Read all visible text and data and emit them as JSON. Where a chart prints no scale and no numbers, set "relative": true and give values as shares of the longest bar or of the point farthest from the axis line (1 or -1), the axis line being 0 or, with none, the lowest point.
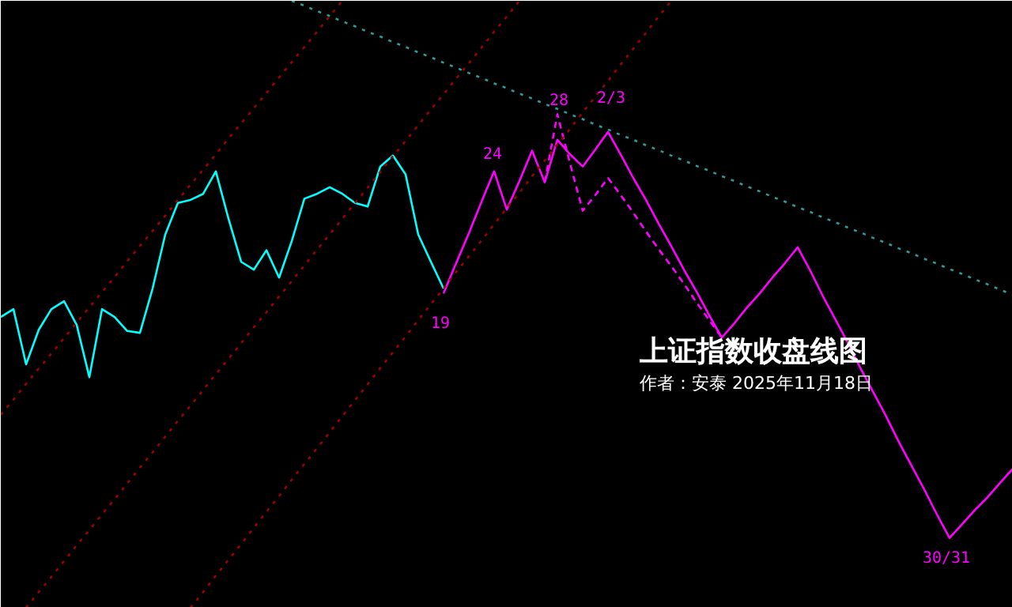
{
  "chart_data": {
    "type": "line",
    "title": "上证指数收盘线图",
    "subtitle": "作者：安泰 2025年11月18日",
    "relative": true,
    "categories": [
      null,
      null,
      null,
      null,
      null,
      null,
      null,
      null,
      null,
      null,
      null,
      null,
      null,
      null,
      null,
      null,
      null,
      null,
      null,
      null,
      null,
      null,
      null,
      null,
      null,
      null,
      null,
      null,
      null,
      null,
      null,
      null,
      null,
      null,
      null,
      null,
      null,
      null,
      null,
      null,
      null,
      null,
      null,
      null,
      null,
      null,
      null,
      null,
      null,
      null,
      null,
      null,
      null,
      null,
      null,
      null,
      null,
      null,
      null,
      null,
      null,
      null,
      null,
      null,
      null,
      null,
      null,
      null,
      null,
      null,
      null,
      null,
      null,
      null,
      null,
      null,
      null,
      null,
      null,
      null,
      null
    ],
    "series": [
      {
        "color": "#00ffff",
        "line_style": "solid",
        "values": [
          0.479,
          0.492,
          0.401,
          0.458,
          0.492,
          0.505,
          0.466,
          0.38,
          0.492,
          0.479,
          0.456,
          0.453,
          0.526,
          0.615,
          0.667,
          0.672,
          0.682,
          0.719,
          0.641,
          0.57,
          0.557,
          0.589,
          0.544,
          0.604,
          0.674,
          0.682,
          0.693,
          0.682,
          0.667,
          0.661,
          0.727,
          0.745,
          0.714,
          0.615,
          0.57,
          0.526,
          null,
          null,
          null,
          null,
          null,
          null,
          null,
          null,
          null,
          null,
          null,
          null,
          null,
          null,
          null,
          null,
          null,
          null,
          null,
          null,
          null,
          null,
          null,
          null,
          null,
          null,
          null,
          null,
          null,
          null,
          null,
          null,
          null,
          null,
          null,
          null,
          null,
          null,
          null,
          null,
          null,
          null,
          null,
          null,
          null
        ]
      },
      {
        "color": "#ff00ff",
        "line_style": "solid",
        "values": [
          null,
          null,
          null,
          null,
          null,
          null,
          null,
          null,
          null,
          null,
          null,
          null,
          null,
          null,
          null,
          null,
          null,
          null,
          null,
          null,
          null,
          null,
          null,
          null,
          null,
          null,
          null,
          null,
          null,
          null,
          null,
          null,
          null,
          null,
          null,
          0.518,
          0.568,
          0.617,
          0.669,
          0.719,
          0.656,
          0.703,
          0.753,
          0.701,
          0.771,
          0.747,
          0.727,
          0.755,
          0.784,
          0.747,
          0.708,
          0.672,
          0.633,
          0.596,
          0.557,
          0.521,
          0.482,
          0.445,
          0.469,
          0.495,
          0.518,
          0.544,
          0.568,
          0.594,
          0.555,
          0.513,
          0.474,
          0.435,
          0.393,
          0.354,
          0.315,
          0.273,
          0.234,
          0.195,
          0.154,
          0.115,
          0.138,
          0.161,
          0.182,
          0.206,
          0.229
        ]
      },
      {
        "color": "#ff00ff",
        "line_style": "dashed",
        "values": [
          null,
          null,
          null,
          null,
          null,
          null,
          null,
          null,
          null,
          null,
          null,
          null,
          null,
          null,
          null,
          null,
          null,
          null,
          null,
          null,
          null,
          null,
          null,
          null,
          null,
          null,
          null,
          null,
          null,
          null,
          null,
          null,
          null,
          null,
          null,
          null,
          null,
          null,
          null,
          null,
          null,
          null,
          null,
          0.701,
          0.813,
          0.732,
          0.654,
          0.68,
          0.708,
          0.68,
          0.651,
          0.62,
          0.591,
          0.563,
          0.534,
          0.503,
          0.474,
          0.445,
          null,
          null,
          null,
          null,
          null,
          null,
          null,
          null,
          null,
          null,
          null,
          null,
          null,
          null,
          null,
          null,
          null,
          null,
          null,
          null,
          null,
          null,
          null
        ]
      },
      {
        "color": "#a00000",
        "line_style": "dotted",
        "values": [
          0.318,
          0.343,
          0.369,
          0.394,
          0.419,
          0.444,
          0.47,
          0.495,
          0.52,
          0.545,
          0.571,
          0.596,
          0.621,
          0.646,
          0.672,
          0.697,
          0.722,
          0.747,
          0.773,
          0.798,
          0.823,
          0.848,
          0.874,
          0.899,
          0.924,
          0.949,
          0.975,
          1.0,
          null,
          null,
          null,
          null,
          null,
          null,
          null,
          null,
          null,
          null,
          null,
          null,
          null,
          null,
          null,
          null,
          null,
          null,
          null,
          null,
          null,
          null,
          null,
          null,
          null,
          null,
          null,
          null,
          null,
          null,
          null,
          null,
          null,
          null,
          null,
          null,
          null,
          null,
          null,
          null,
          null,
          null,
          null,
          null,
          null,
          null,
          null,
          null,
          null,
          null,
          null,
          null,
          null
        ]
      },
      {
        "color": "#a00000",
        "line_style": "dotted",
        "values": [
          null,
          null,
          0,
          0.026,
          0.051,
          0.077,
          0.103,
          0.128,
          0.154,
          0.179,
          0.205,
          0.231,
          0.256,
          0.282,
          0.308,
          0.333,
          0.359,
          0.385,
          0.41,
          0.436,
          0.462,
          0.487,
          0.513,
          0.538,
          0.564,
          0.59,
          0.615,
          0.641,
          0.667,
          0.692,
          0.718,
          0.744,
          0.769,
          0.795,
          0.821,
          0.846,
          0.872,
          0.897,
          0.923,
          0.949,
          0.974,
          1.0,
          null,
          null,
          null,
          null,
          null,
          null,
          null,
          null,
          null,
          null,
          null,
          null,
          null,
          null,
          null,
          null,
          null,
          null,
          null,
          null,
          null,
          null,
          null,
          null,
          null,
          null,
          null,
          null,
          null,
          null,
          null,
          null,
          null,
          null,
          null,
          null,
          null,
          null,
          null
        ]
      },
      {
        "color": "#a00000",
        "line_style": "dotted",
        "values": [
          null,
          null,
          null,
          null,
          null,
          null,
          null,
          null,
          null,
          null,
          null,
          null,
          null,
          null,
          null,
          0,
          0.026,
          0.053,
          0.079,
          0.105,
          0.132,
          0.158,
          0.184,
          0.211,
          0.237,
          0.263,
          0.289,
          0.316,
          0.342,
          0.368,
          0.395,
          0.421,
          0.447,
          0.474,
          0.5,
          0.526,
          0.553,
          0.579,
          0.605,
          0.632,
          0.658,
          0.684,
          0.711,
          0.737,
          0.763,
          0.789,
          0.816,
          0.842,
          0.868,
          0.895,
          0.921,
          0.947,
          0.974,
          1.0,
          null,
          null,
          null,
          null,
          null,
          null,
          null,
          null,
          null,
          null,
          null,
          null,
          null,
          null,
          null,
          null,
          null,
          null,
          null,
          null,
          null,
          null,
          null,
          null,
          null,
          null,
          null
        ]
      },
      {
        "color": "#2e9a9a",
        "line_style": "dotted",
        "values": [
          null,
          null,
          null,
          null,
          null,
          null,
          null,
          null,
          null,
          null,
          null,
          null,
          null,
          null,
          null,
          null,
          null,
          null,
          null,
          null,
          null,
          null,
          null,
          1,
          0.992,
          0.983,
          0.975,
          0.966,
          0.958,
          0.949,
          0.941,
          0.932,
          0.924,
          0.915,
          0.907,
          0.898,
          0.89,
          0.881,
          0.873,
          0.864,
          0.856,
          0.847,
          0.839,
          0.83,
          0.822,
          0.813,
          0.805,
          0.796,
          0.788,
          0.779,
          0.771,
          0.762,
          0.754,
          0.745,
          0.737,
          0.728,
          0.72,
          0.711,
          0.703,
          0.694,
          0.686,
          0.677,
          0.669,
          0.66,
          0.652,
          0.643,
          0.635,
          0.626,
          0.618,
          0.609,
          0.601,
          0.592,
          0.584,
          0.575,
          0.567,
          0.558,
          0.55,
          0.541,
          0.533,
          0.524,
          0.516
        ]
      }
    ],
    "annotations": [
      "19",
      "24",
      "28",
      "2/3",
      "30/31"
    ]
  }
}
